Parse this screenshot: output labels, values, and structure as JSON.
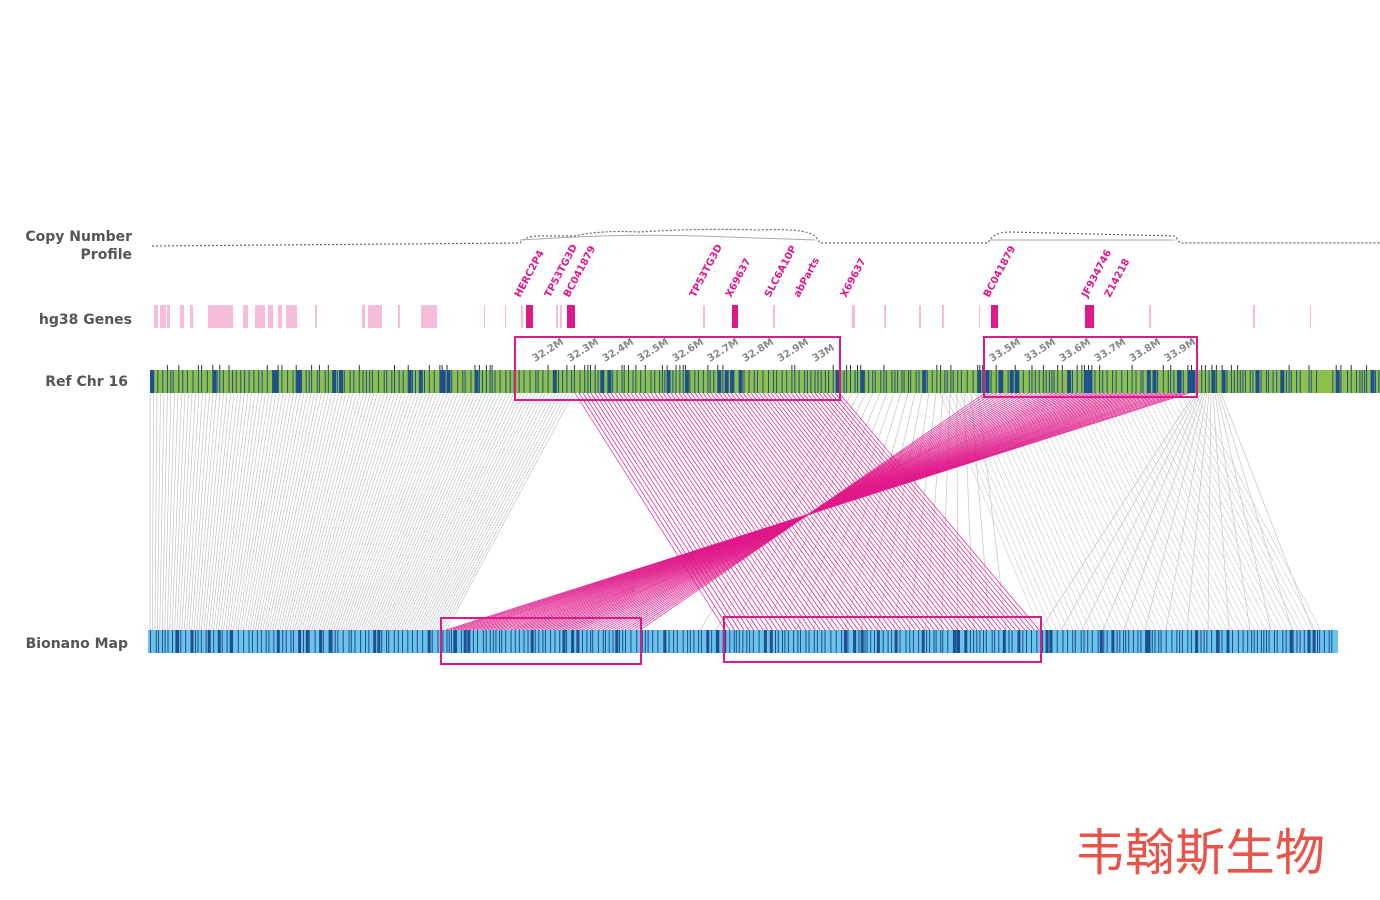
{
  "tracks": {
    "copy_number": [
      "Copy Number",
      "Profile"
    ],
    "genes": "hg38 Genes",
    "ref": "Ref Chr 16",
    "bionano": "Bionano Map"
  },
  "gene_labels": [
    "HERC2P4",
    "TP53TG3D",
    "BC041879",
    "TP53TG3D",
    "X69637",
    "SLC6A10P",
    "abParts",
    "X69637",
    "BC041879",
    "JF934746",
    "Z14218"
  ],
  "positions_left": [
    "32.2M",
    "32.3M",
    "32.4M",
    "32.5M",
    "32.6M",
    "32.7M",
    "32.8M",
    "32.9M",
    "33M"
  ],
  "positions_right": [
    "33.5M",
    "33.5M",
    "33.6M",
    "33.7M",
    "33.8M",
    "33.9M"
  ],
  "watermark": "韦翰斯生物"
}
